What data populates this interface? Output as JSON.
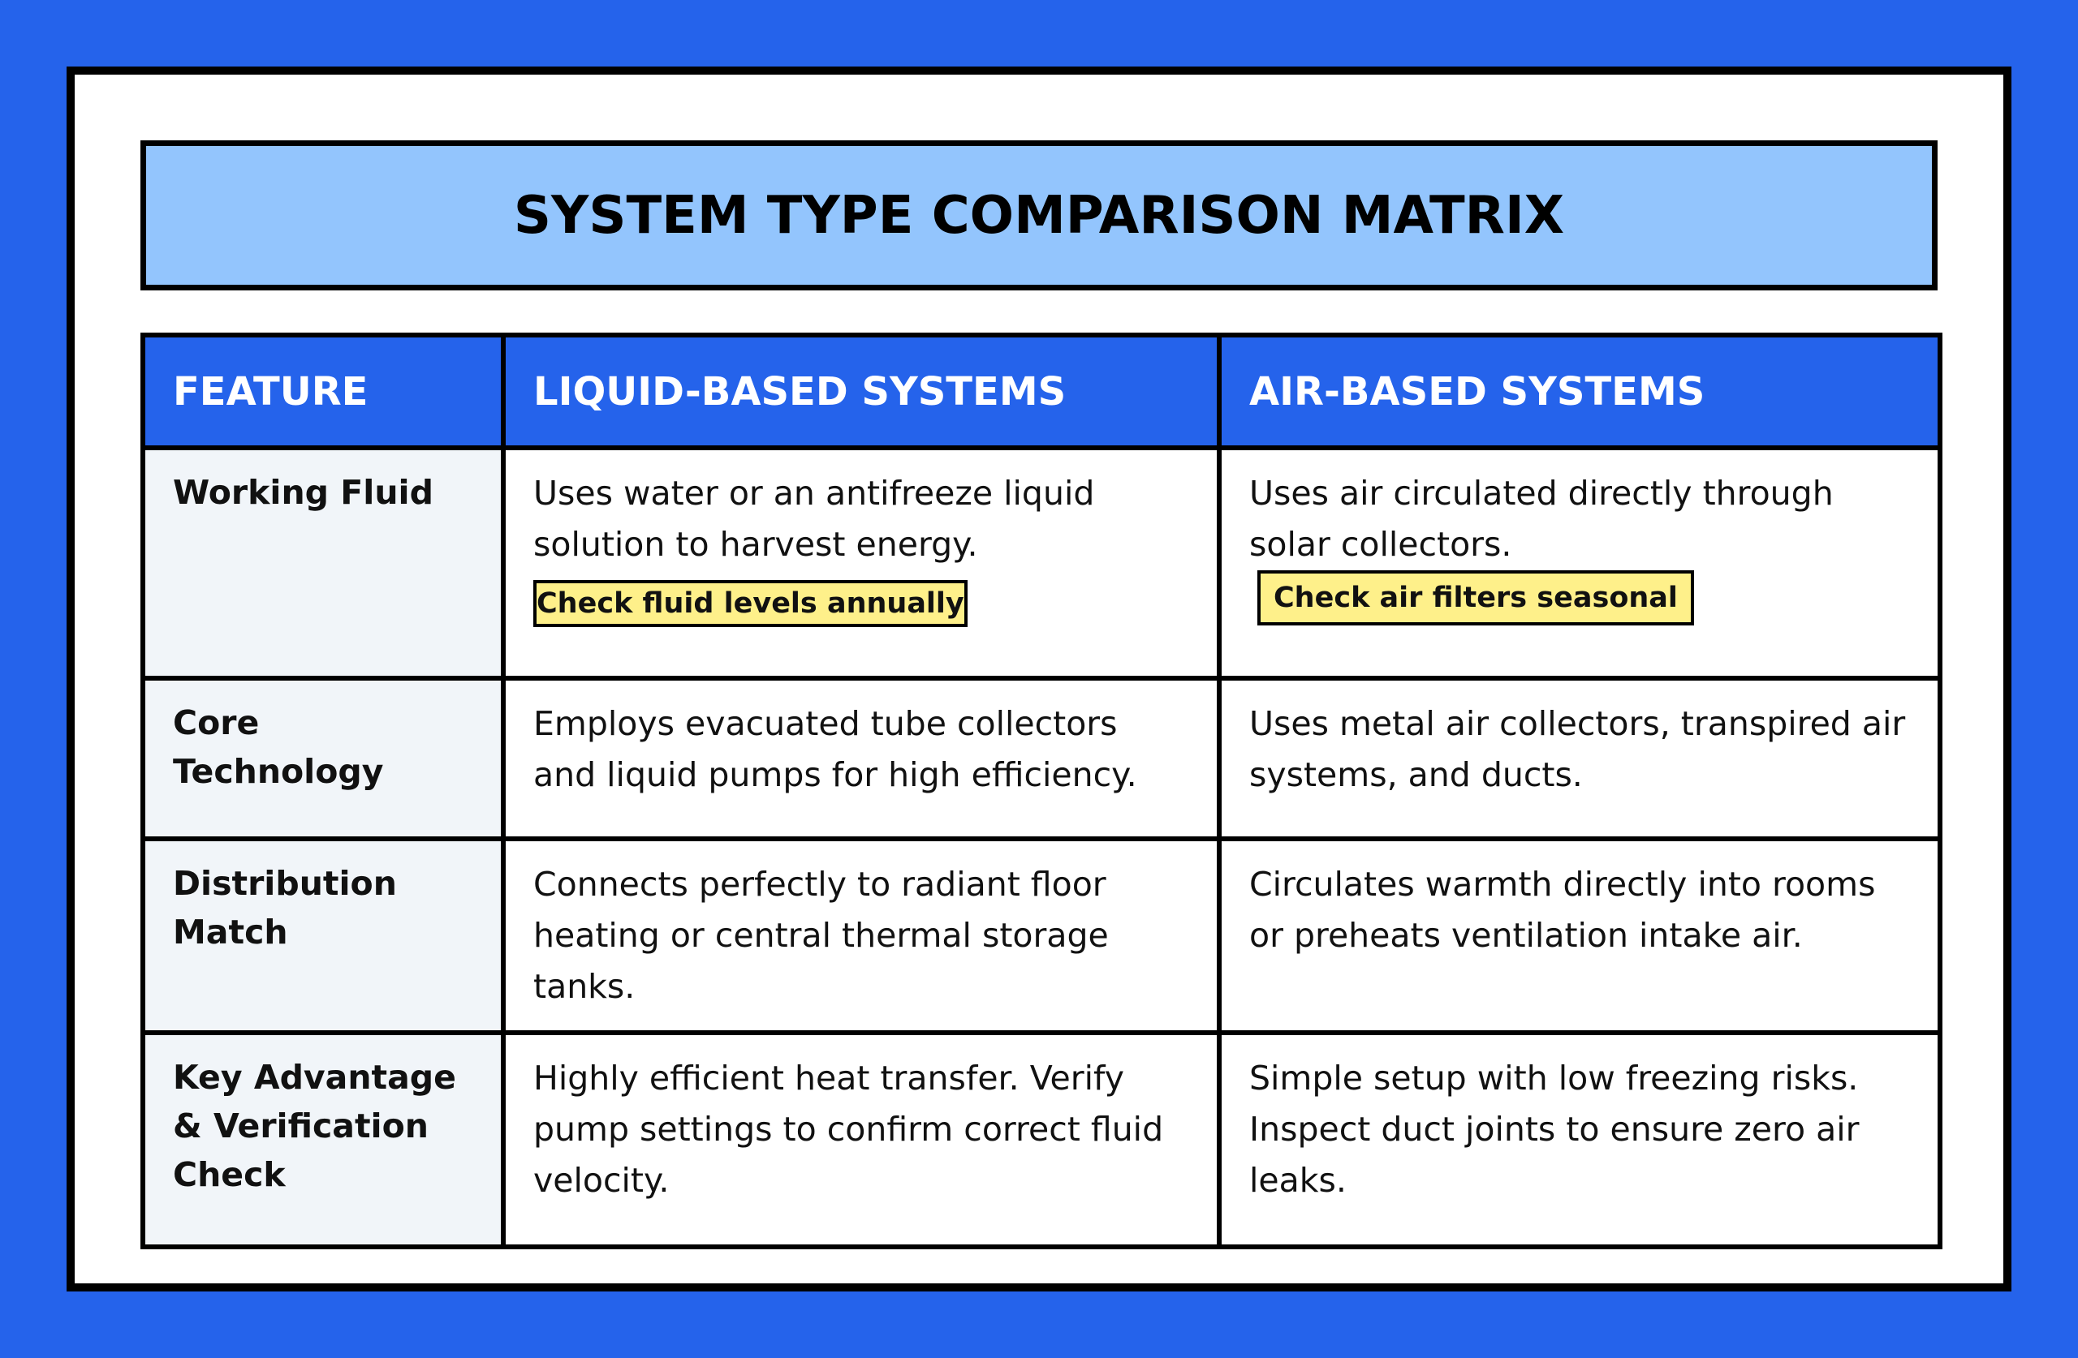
{
  "header": {
    "title": "SYSTEM TYPE COMPARISON MATRIX"
  },
  "table": {
    "headers": [
      "FEATURE",
      "LIQUID-BASED SYSTEMS",
      "AIR-BASED SYSTEMS"
    ],
    "rows": [
      {
        "feature": "Working Fluid",
        "liquid": {
          "text": "Uses water or an antifreeze liquid solution to harvest energy.",
          "note": "Check fluid levels annually"
        },
        "air": {
          "text": "Uses air circulated directly through solar collectors.",
          "note": "Check air filters seasonal"
        }
      },
      {
        "feature": "Core Technology",
        "liquid": {
          "text": "Employs evacuated tube collectors and liquid pumps for high efficiency."
        },
        "air": {
          "text": "Uses metal air collectors, transpired air systems, and ducts."
        }
      },
      {
        "feature": "Distribution Match",
        "liquid": {
          "text": "Connects perfectly to radiant floor heating or central thermal storage tanks."
        },
        "air": {
          "text": "Circulates warmth directly into rooms or preheats ventilation intake air."
        }
      },
      {
        "feature": "Key Advantage & Verification Check",
        "liquid": {
          "text": "Highly efficient heat transfer. Verify pump settings to confirm correct fluid velocity."
        },
        "air": {
          "text": "Simple setup with low freezing risks. Inspect duct joints to ensure zero air leaks."
        }
      }
    ]
  }
}
